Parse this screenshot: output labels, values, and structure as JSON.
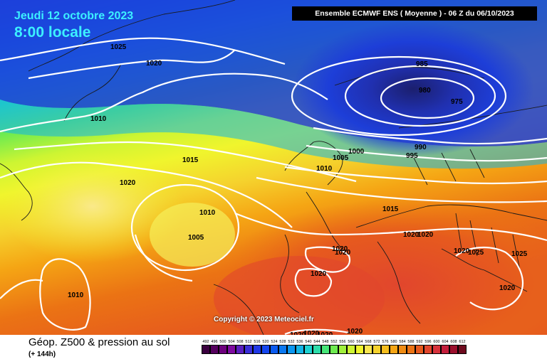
{
  "header": {
    "date": "Jeudi 12 octobre 2023",
    "time": "8:00 locale",
    "model_banner": "Ensemble ECMWF ENS  ( Moyenne )  -  06 Z du 06/10/2023"
  },
  "footer": {
    "title": "Géop. Z500 & pression au sol",
    "subtitle": "(+ 144h)",
    "copyright": "Copyright © 2023 Meteociel.fr"
  },
  "legend": {
    "levels": [
      "492",
      "496",
      "500",
      "504",
      "508",
      "512",
      "516",
      "520",
      "524",
      "528",
      "532",
      "536",
      "540",
      "544",
      "548",
      "552",
      "556",
      "560",
      "564",
      "568",
      "572",
      "576",
      "580",
      "584",
      "588",
      "592",
      "596",
      "600",
      "604",
      "608",
      "612"
    ],
    "colors": [
      "#3a003f",
      "#55005e",
      "#6d007d",
      "#7f0aa0",
      "#5a1fbf",
      "#3a2fd8",
      "#2038e6",
      "#1546ef",
      "#0a5af0",
      "#0a78f0",
      "#0a96f0",
      "#14b4e6",
      "#1ed2d2",
      "#2ddcaa",
      "#46e678",
      "#6eeb50",
      "#a0f03c",
      "#cdf532",
      "#f0f52d",
      "#fae650",
      "#f5d22d",
      "#f5be1e",
      "#f5a514",
      "#f08c14",
      "#eb7314",
      "#e65a1e",
      "#e1462d",
      "#d7323c",
      "#c31e3c",
      "#9b0f2d",
      "#6e0a1e"
    ]
  },
  "isobars": [
    {
      "label": "1025"
    },
    {
      "label": "1020"
    },
    {
      "label": "1010"
    },
    {
      "label": "985"
    },
    {
      "label": "980"
    },
    {
      "label": "975"
    },
    {
      "label": "990"
    },
    {
      "label": "995"
    },
    {
      "label": "1000"
    },
    {
      "label": "1005"
    },
    {
      "label": "1010"
    },
    {
      "label": "1015"
    },
    {
      "label": "1020"
    },
    {
      "label": "1010"
    },
    {
      "label": "1005"
    },
    {
      "label": "1015"
    },
    {
      "label": "1020"
    },
    {
      "label": "1020"
    },
    {
      "label": "1020"
    },
    {
      "label": "1020"
    },
    {
      "label": "1025"
    },
    {
      "label": "1025"
    },
    {
      "label": "1020"
    },
    {
      "label": "1020"
    },
    {
      "label": "1010"
    },
    {
      "label": "1020"
    },
    {
      "label": "1020"
    },
    {
      "label": "1020"
    },
    {
      "label": "1020"
    },
    {
      "label": "1020"
    }
  ]
}
